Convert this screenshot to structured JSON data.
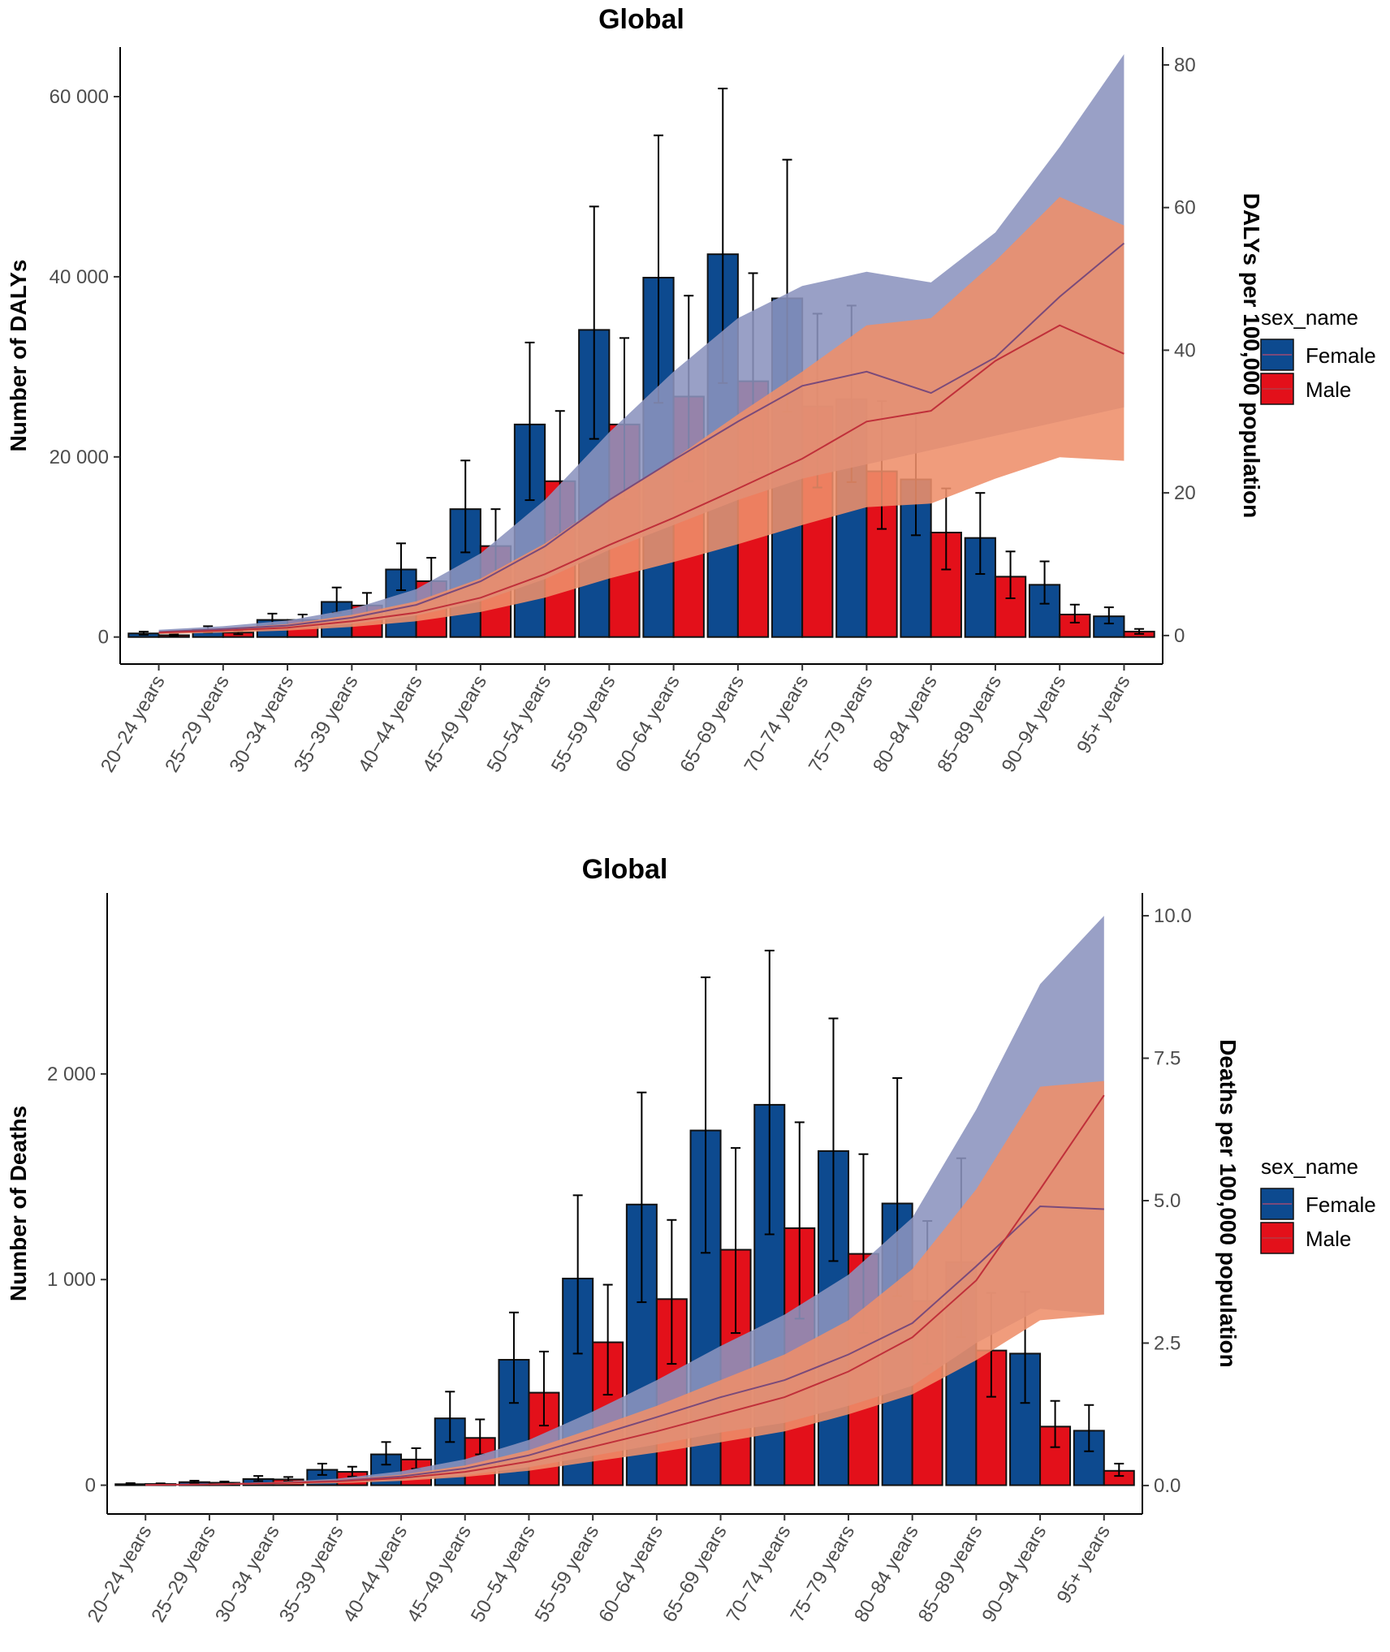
{
  "chart_data": [
    {
      "type": "bar",
      "title": "Global",
      "xlabel": "",
      "ylabel": "Number of DALYs",
      "y2label": "DALYs per 100,000 population",
      "categories": [
        "20−24 years",
        "25−29 years",
        "30−34 years",
        "35−39 years",
        "40−44 years",
        "45−49 years",
        "50−54 years",
        "55−59 years",
        "60−64 years",
        "65−69 years",
        "70−74 years",
        "75−79 years",
        "80−84 years",
        "85−89 years",
        "90−94 years",
        "95+ years"
      ],
      "ylim": [
        -3000,
        65500
      ],
      "y_ticks": [
        0,
        20000,
        40000,
        60000
      ],
      "y_tick_labels": [
        "0",
        "20 000",
        "40 000",
        "60 000"
      ],
      "y2lim": [
        -4,
        82.5
      ],
      "y2_ticks": [
        0,
        20,
        40,
        60,
        80
      ],
      "y2_tick_labels": [
        "0",
        "20",
        "40",
        "60",
        "80"
      ],
      "series": [
        {
          "name": "Female",
          "color": "#0d4a8f",
          "values": [
            400,
            800,
            1900,
            3900,
            7500,
            14200,
            23600,
            34100,
            39900,
            42500,
            37600,
            26400,
            17500,
            11000,
            5800,
            2300
          ],
          "lower": [
            250,
            500,
            1300,
            2700,
            5200,
            9400,
            15200,
            22000,
            26000,
            28200,
            25000,
            17200,
            11300,
            7000,
            3700,
            1500
          ],
          "upper": [
            600,
            1200,
            2600,
            5500,
            10400,
            19600,
            32700,
            47800,
            55700,
            60900,
            53000,
            36800,
            24700,
            16000,
            8400,
            3300
          ]
        },
        {
          "name": "Male",
          "color": "#e3101a",
          "values": [
            200,
            500,
            1900,
            3500,
            6200,
            10100,
            17300,
            23600,
            26700,
            28400,
            25600,
            18400,
            11600,
            6700,
            2500,
            600
          ],
          "lower": [
            120,
            300,
            1200,
            2300,
            4100,
            6600,
            11300,
            15300,
            17300,
            18300,
            16600,
            12000,
            7500,
            4300,
            1600,
            350
          ],
          "upper": [
            300,
            700,
            2500,
            4900,
            8800,
            14200,
            25100,
            33200,
            37900,
            40400,
            35900,
            26200,
            16500,
            9500,
            3600,
            900
          ]
        }
      ],
      "rate_series": [
        {
          "name": "Female",
          "band_color": "#8b93be",
          "rate": [
            0.5,
            0.9,
            1.4,
            2.5,
            4.3,
            7.6,
            12.5,
            19,
            24.6,
            30,
            35,
            37,
            34,
            39,
            47.5,
            55
          ],
          "rate_lower": [
            0.3,
            0.6,
            0.9,
            1.6,
            2.8,
            4.8,
            7.9,
            12,
            15.5,
            19,
            22,
            24,
            26,
            28,
            30,
            32
          ],
          "rate_upper": [
            0.8,
            1.3,
            2.1,
            3.7,
            6.5,
            11.5,
            19,
            28.5,
            37,
            44.5,
            49,
            51,
            49.5,
            56.5,
            68.5,
            81.5
          ]
        },
        {
          "name": "Male",
          "band_color": "#ee8e6a",
          "rate": [
            0.4,
            0.7,
            1.1,
            2,
            3.2,
            5.3,
            8.6,
            12.7,
            16.5,
            20.6,
            24.8,
            30,
            31.5,
            38.5,
            43.5,
            39.5
          ],
          "rate_lower": [
            0.2,
            0.4,
            0.7,
            1.2,
            2,
            3.3,
            5.3,
            8,
            10.3,
            12.8,
            15.5,
            18,
            18.5,
            22,
            25,
            24.5
          ],
          "rate_upper": [
            0.6,
            1,
            1.6,
            2.9,
            4.8,
            8,
            12.9,
            19,
            24.7,
            31,
            37,
            43.5,
            44.5,
            52.5,
            61.5,
            57.5
          ]
        }
      ],
      "legend": {
        "title": "sex_name",
        "entries": [
          "Female",
          "Male"
        ],
        "position": "right"
      }
    },
    {
      "type": "bar",
      "title": "Global",
      "xlabel": "",
      "ylabel": "Number of Deaths",
      "y2label": "Deaths per 100,000 population",
      "categories": [
        "20−24 years",
        "25−29 years",
        "30−34 years",
        "35−39 years",
        "40−44 years",
        "45−49 years",
        "50−54 years",
        "55−59 years",
        "60−64 years",
        "65−69 years",
        "70−74 years",
        "75−79 years",
        "80−84 years",
        "85−89 years",
        "90−94 years",
        "95+ years"
      ],
      "ylim": [
        -140,
        2880
      ],
      "y_ticks": [
        0,
        1000,
        2000
      ],
      "y_tick_labels": [
        "0",
        "1 000",
        "2 000"
      ],
      "y2lim": [
        -0.5,
        10.4
      ],
      "y2_ticks": [
        0,
        2.5,
        5,
        7.5,
        10
      ],
      "y2_tick_labels": [
        "0.0",
        "2.5",
        "5.0",
        "7.5",
        "10.0"
      ],
      "series": [
        {
          "name": "Female",
          "color": "#0d4a8f",
          "values": [
            5,
            15,
            30,
            75,
            150,
            325,
            610,
            1005,
            1365,
            1725,
            1850,
            1625,
            1370,
            1085,
            640,
            265
          ],
          "lower": [
            3,
            10,
            20,
            50,
            100,
            210,
            400,
            640,
            890,
            1130,
            1220,
            1090,
            920,
            720,
            400,
            165
          ],
          "upper": [
            10,
            22,
            45,
            105,
            210,
            455,
            840,
            1410,
            1910,
            2470,
            2600,
            2270,
            1980,
            1590,
            940,
            390
          ]
        },
        {
          "name": "Male",
          "color": "#e3101a",
          "values": [
            6,
            12,
            28,
            65,
            125,
            230,
            450,
            695,
            905,
            1145,
            1250,
            1125,
            895,
            655,
            285,
            70
          ],
          "lower": [
            3,
            8,
            18,
            42,
            80,
            150,
            290,
            440,
            590,
            740,
            810,
            740,
            590,
            430,
            185,
            45
          ],
          "upper": [
            9,
            18,
            40,
            90,
            180,
            320,
            650,
            975,
            1290,
            1640,
            1765,
            1610,
            1285,
            935,
            410,
            105
          ]
        }
      ],
      "rate_series": [
        {
          "name": "Female",
          "band_color": "#8b93be",
          "rate": [
            0.01,
            0.02,
            0.04,
            0.08,
            0.16,
            0.3,
            0.53,
            0.86,
            1.2,
            1.55,
            1.85,
            2.3,
            2.85,
            3.85,
            4.9,
            4.85
          ],
          "rate_lower": [
            0.005,
            0.01,
            0.02,
            0.05,
            0.1,
            0.18,
            0.32,
            0.52,
            0.72,
            0.93,
            1.1,
            1.4,
            1.75,
            2.5,
            3.1,
            3.0
          ],
          "rate_upper": [
            0.02,
            0.03,
            0.06,
            0.12,
            0.25,
            0.46,
            0.8,
            1.3,
            1.85,
            2.45,
            3.0,
            3.7,
            4.7,
            6.6,
            8.8,
            10.0
          ]
        },
        {
          "name": "Male",
          "band_color": "#ee8e6a",
          "rate": [
            0.01,
            0.02,
            0.04,
            0.07,
            0.13,
            0.24,
            0.42,
            0.68,
            0.95,
            1.25,
            1.55,
            2.0,
            2.6,
            3.6,
            5.2,
            6.85
          ],
          "rate_lower": [
            0.005,
            0.01,
            0.02,
            0.04,
            0.08,
            0.15,
            0.26,
            0.42,
            0.58,
            0.76,
            0.95,
            1.25,
            1.6,
            2.2,
            2.9,
            3.0
          ],
          "rate_upper": [
            0.02,
            0.03,
            0.06,
            0.1,
            0.19,
            0.35,
            0.62,
            1.0,
            1.4,
            1.85,
            2.3,
            2.9,
            3.8,
            5.2,
            7.0,
            7.1
          ]
        }
      ],
      "legend": {
        "title": "sex_name",
        "entries": [
          "Female",
          "Male"
        ],
        "position": "right"
      }
    }
  ]
}
